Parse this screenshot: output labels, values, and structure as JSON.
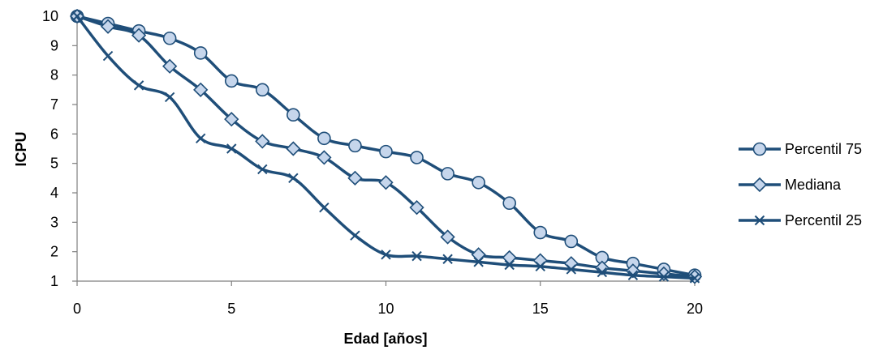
{
  "chart_data": {
    "type": "line",
    "xlabel": "Edad [años]",
    "ylabel": "ICPU",
    "xlim": [
      0,
      20
    ],
    "ylim": [
      1,
      10
    ],
    "xticks": [
      0,
      5,
      10,
      15,
      20
    ],
    "yticks": [
      1,
      2,
      3,
      4,
      5,
      6,
      7,
      8,
      9,
      10
    ],
    "grid": false,
    "legend_position": "right",
    "line_color": "#1f4e79",
    "marker_fill": "#c6d6ec",
    "series": [
      {
        "name": "Percentil 75",
        "marker": "circle",
        "x": [
          0,
          1,
          2,
          3,
          4,
          5,
          6,
          7,
          8,
          9,
          10,
          11,
          12,
          13,
          14,
          15,
          16,
          17,
          18,
          19,
          20
        ],
        "values": [
          10,
          9.75,
          9.5,
          9.25,
          8.75,
          7.8,
          7.5,
          6.65,
          5.85,
          5.6,
          5.4,
          5.2,
          4.65,
          4.35,
          3.65,
          2.65,
          2.35,
          1.8,
          1.6,
          1.4,
          1.2
        ]
      },
      {
        "name": "Mediana",
        "marker": "diamond",
        "x": [
          0,
          1,
          2,
          3,
          4,
          5,
          6,
          7,
          8,
          9,
          10,
          11,
          12,
          13,
          14,
          15,
          16,
          17,
          18,
          19,
          20
        ],
        "values": [
          10,
          9.65,
          9.35,
          8.3,
          7.5,
          6.5,
          5.75,
          5.5,
          5.2,
          4.5,
          4.35,
          3.5,
          2.5,
          1.9,
          1.8,
          1.7,
          1.6,
          1.45,
          1.35,
          1.25,
          1.15
        ]
      },
      {
        "name": "Percentil 25",
        "marker": "x",
        "x": [
          0,
          1,
          2,
          3,
          4,
          5,
          6,
          7,
          8,
          9,
          10,
          11,
          12,
          13,
          14,
          15,
          16,
          17,
          18,
          19,
          20
        ],
        "values": [
          10,
          8.65,
          7.65,
          7.25,
          5.85,
          5.5,
          4.8,
          4.5,
          3.5,
          2.55,
          1.9,
          1.85,
          1.75,
          1.65,
          1.55,
          1.5,
          1.4,
          1.3,
          1.2,
          1.15,
          1.1
        ]
      }
    ]
  }
}
